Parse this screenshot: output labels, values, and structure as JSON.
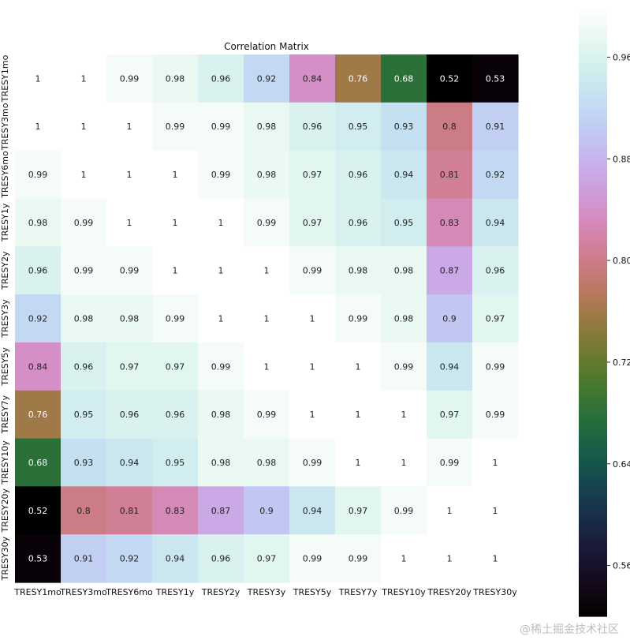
{
  "chart_data": {
    "type": "heatmap",
    "title": "Correlation Matrix",
    "x_labels": [
      "TRESY1mo",
      "TRESY3mo",
      "TRESY6mo",
      "TRESY1y",
      "TRESY2y",
      "TRESY3y",
      "TRESY5y",
      "TRESY7y",
      "TRESY10y",
      "TRESY20y",
      "TRESY30y"
    ],
    "y_labels": [
      "TRESY1mo",
      "TRESY3mo",
      "TRESY6mo",
      "TRESY1y",
      "TRESY2y",
      "TRESY3y",
      "TRESY5y",
      "TRESY7y",
      "TRESY10y",
      "TRESY20y",
      "TRESY30y"
    ],
    "values": [
      [
        1,
        1,
        0.99,
        0.98,
        0.96,
        0.92,
        0.84,
        0.76,
        0.68,
        0.52,
        0.53
      ],
      [
        1,
        1,
        1,
        0.99,
        0.99,
        0.98,
        0.96,
        0.95,
        0.93,
        0.8,
        0.91
      ],
      [
        0.99,
        1,
        1,
        1,
        0.99,
        0.98,
        0.97,
        0.96,
        0.94,
        0.81,
        0.92
      ],
      [
        0.98,
        0.99,
        1,
        1,
        1,
        0.99,
        0.97,
        0.96,
        0.95,
        0.83,
        0.94
      ],
      [
        0.96,
        0.99,
        0.99,
        1,
        1,
        1,
        0.99,
        0.98,
        0.98,
        0.87,
        0.96
      ],
      [
        0.92,
        0.98,
        0.98,
        0.99,
        1,
        1,
        1,
        0.99,
        0.98,
        0.9,
        0.97
      ],
      [
        0.84,
        0.96,
        0.97,
        0.97,
        0.99,
        1,
        1,
        1,
        0.99,
        0.94,
        0.99
      ],
      [
        0.76,
        0.95,
        0.96,
        0.96,
        0.98,
        0.99,
        1,
        1,
        1,
        0.97,
        0.99
      ],
      [
        0.68,
        0.93,
        0.94,
        0.95,
        0.98,
        0.98,
        0.99,
        1,
        1,
        0.99,
        1
      ],
      [
        0.52,
        0.8,
        0.81,
        0.83,
        0.87,
        0.9,
        0.94,
        0.97,
        0.99,
        1,
        1
      ],
      [
        0.53,
        0.91,
        0.92,
        0.94,
        0.96,
        0.97,
        0.99,
        0.99,
        1,
        1,
        1
      ]
    ],
    "colormap": "cubehelix",
    "colorbar": {
      "ticks": [
        0.56,
        0.64,
        0.72,
        0.8,
        0.88,
        0.96
      ],
      "tick_labels": [
        "0.56",
        "0.64",
        "0.72",
        "0.80",
        "0.88",
        "0.96"
      ],
      "range": [
        0.52,
        1.0
      ]
    },
    "annotations": true,
    "grid": false
  },
  "watermark": "@稀土掘金技术社区"
}
